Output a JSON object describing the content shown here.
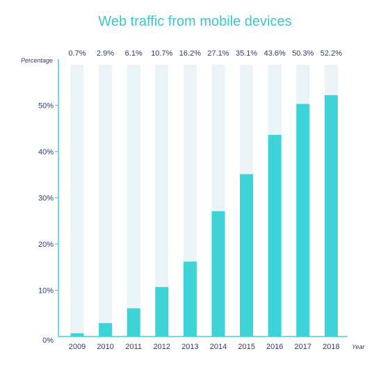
{
  "chart_data": {
    "type": "bar",
    "title": "Web traffic from mobile devices",
    "xlabel": "Year",
    "ylabel": "Percentage",
    "categories": [
      "2009",
      "2010",
      "2011",
      "2012",
      "2013",
      "2014",
      "2015",
      "2016",
      "2017",
      "2018"
    ],
    "values": [
      0.7,
      2.9,
      6.1,
      10.7,
      16.2,
      27.1,
      35.1,
      43.6,
      50.3,
      52.2
    ],
    "value_labels": [
      "0.7%",
      "2.9%",
      "6.1%",
      "10.7%",
      "16.2%",
      "27.1%",
      "35.1%",
      "43.6%",
      "50.3%",
      "52.2%"
    ],
    "yticks": [
      "0%",
      "10%",
      "20%",
      "30%",
      "40%",
      "50%"
    ],
    "ytick_values": [
      0,
      10,
      20,
      30,
      40,
      50
    ],
    "ylim": [
      0,
      60
    ],
    "grid": false,
    "legend": false,
    "colors": {
      "title": "#3cc6c9",
      "bar": "#3ed3d6",
      "bar_track": "#eaf3f6",
      "axis": "#46cfd3",
      "text": "#2a3a70"
    }
  }
}
